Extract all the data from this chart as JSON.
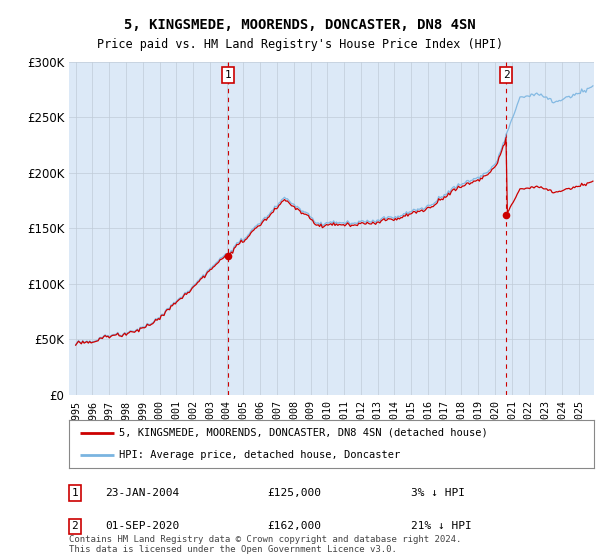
{
  "title1": "5, KINGSMEDE, MOORENDS, DONCASTER, DN8 4SN",
  "title2": "Price paid vs. HM Land Registry's House Price Index (HPI)",
  "plot_bg": "#dce9f7",
  "legend_label_red": "5, KINGSMEDE, MOORENDS, DONCASTER, DN8 4SN (detached house)",
  "legend_label_blue": "HPI: Average price, detached house, Doncaster",
  "annotation1_date": "23-JAN-2004",
  "annotation1_price": "£125,000",
  "annotation1_hpi": "3% ↓ HPI",
  "annotation2_date": "01-SEP-2020",
  "annotation2_price": "£162,000",
  "annotation2_hpi": "21% ↓ HPI",
  "footer": "Contains HM Land Registry data © Crown copyright and database right 2024.\nThis data is licensed under the Open Government Licence v3.0.",
  "ylim": [
    0,
    300000
  ],
  "yticks": [
    0,
    50000,
    100000,
    150000,
    200000,
    250000,
    300000
  ],
  "sale1_year": 2004.07,
  "sale1_price": 125000,
  "sale2_year": 2020.67,
  "sale2_price": 162000,
  "xstart": 1995,
  "xend": 2025
}
